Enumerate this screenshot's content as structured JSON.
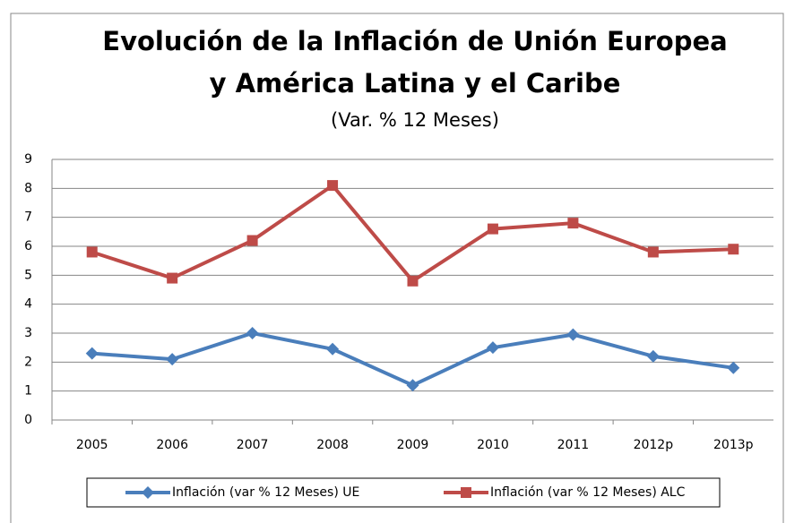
{
  "chart_data": {
    "type": "line",
    "title": [
      "Evolución de la Inflación de Unión Europea",
      "y América Latina y el Caribe"
    ],
    "subtitle": "(Var. % 12 Meses)",
    "categories": [
      "2005",
      "2006",
      "2007",
      "2008",
      "2009",
      "2010",
      "2011",
      "2012p",
      "2013p"
    ],
    "series": [
      {
        "name": "Inflación (var % 12 Meses) UE",
        "color": "#4a7ebb",
        "marker": "diamond",
        "values": [
          2.3,
          2.1,
          3.0,
          2.45,
          1.2,
          2.5,
          2.95,
          2.2,
          1.8
        ]
      },
      {
        "name": "Inflación (var % 12 Meses) ALC",
        "color": "#be4b48",
        "marker": "square",
        "values": [
          5.8,
          4.9,
          6.2,
          8.1,
          4.8,
          6.6,
          6.8,
          5.8,
          5.9
        ]
      }
    ],
    "ylim": [
      0,
      9
    ],
    "yticks": [
      0,
      1,
      2,
      3,
      4,
      5,
      6,
      7,
      8,
      9
    ],
    "grid": true,
    "legend": "bottom"
  }
}
